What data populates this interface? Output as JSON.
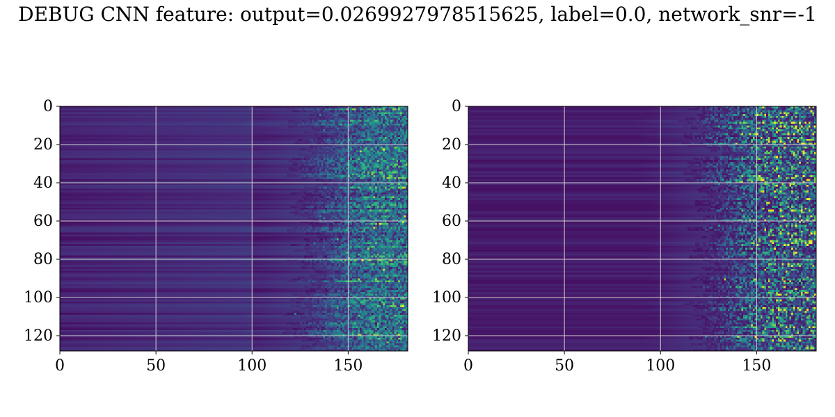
{
  "figure": {
    "suptitle": "DEBUG CNN feature: output=0.0269927978515625, label=0.0, network_snr=-1"
  },
  "colors": {
    "background": "#ffffff",
    "grid": "#cfcfcf",
    "axis": "#000000",
    "colormap": "viridis",
    "viridis_stops": [
      "#440154",
      "#482878",
      "#3e4989",
      "#31688e",
      "#26828e",
      "#1f9e89",
      "#35b779",
      "#6ece58",
      "#b5de2b",
      "#fde725"
    ]
  },
  "chart_data": [
    {
      "type": "heatmap",
      "panel": "left",
      "title": "",
      "xlabel": "",
      "ylabel": "",
      "x_ticks": [
        0,
        50,
        100,
        150
      ],
      "y_ticks": [
        0,
        20,
        40,
        60,
        80,
        100,
        120
      ],
      "xlim": [
        0,
        181
      ],
      "ylim": [
        128,
        0
      ],
      "grid": true,
      "n_rows": 128,
      "n_cols": 181,
      "activation_onset_col_range": [
        110,
        140
      ],
      "peak_activation": "yellow-green, cols 140-175",
      "seed": 7
    },
    {
      "type": "heatmap",
      "panel": "right",
      "title": "",
      "xlabel": "",
      "ylabel": "",
      "x_ticks": [
        0,
        50,
        100,
        150
      ],
      "y_ticks": [
        0,
        20,
        40,
        60,
        80,
        100,
        120
      ],
      "xlim": [
        0,
        181
      ],
      "ylim": [
        128,
        0
      ],
      "grid": true,
      "n_rows": 128,
      "n_cols": 181,
      "activation_onset_col_range": [
        105,
        135
      ],
      "peak_activation": "green speckle, cols 145-180",
      "seed": 13
    }
  ]
}
